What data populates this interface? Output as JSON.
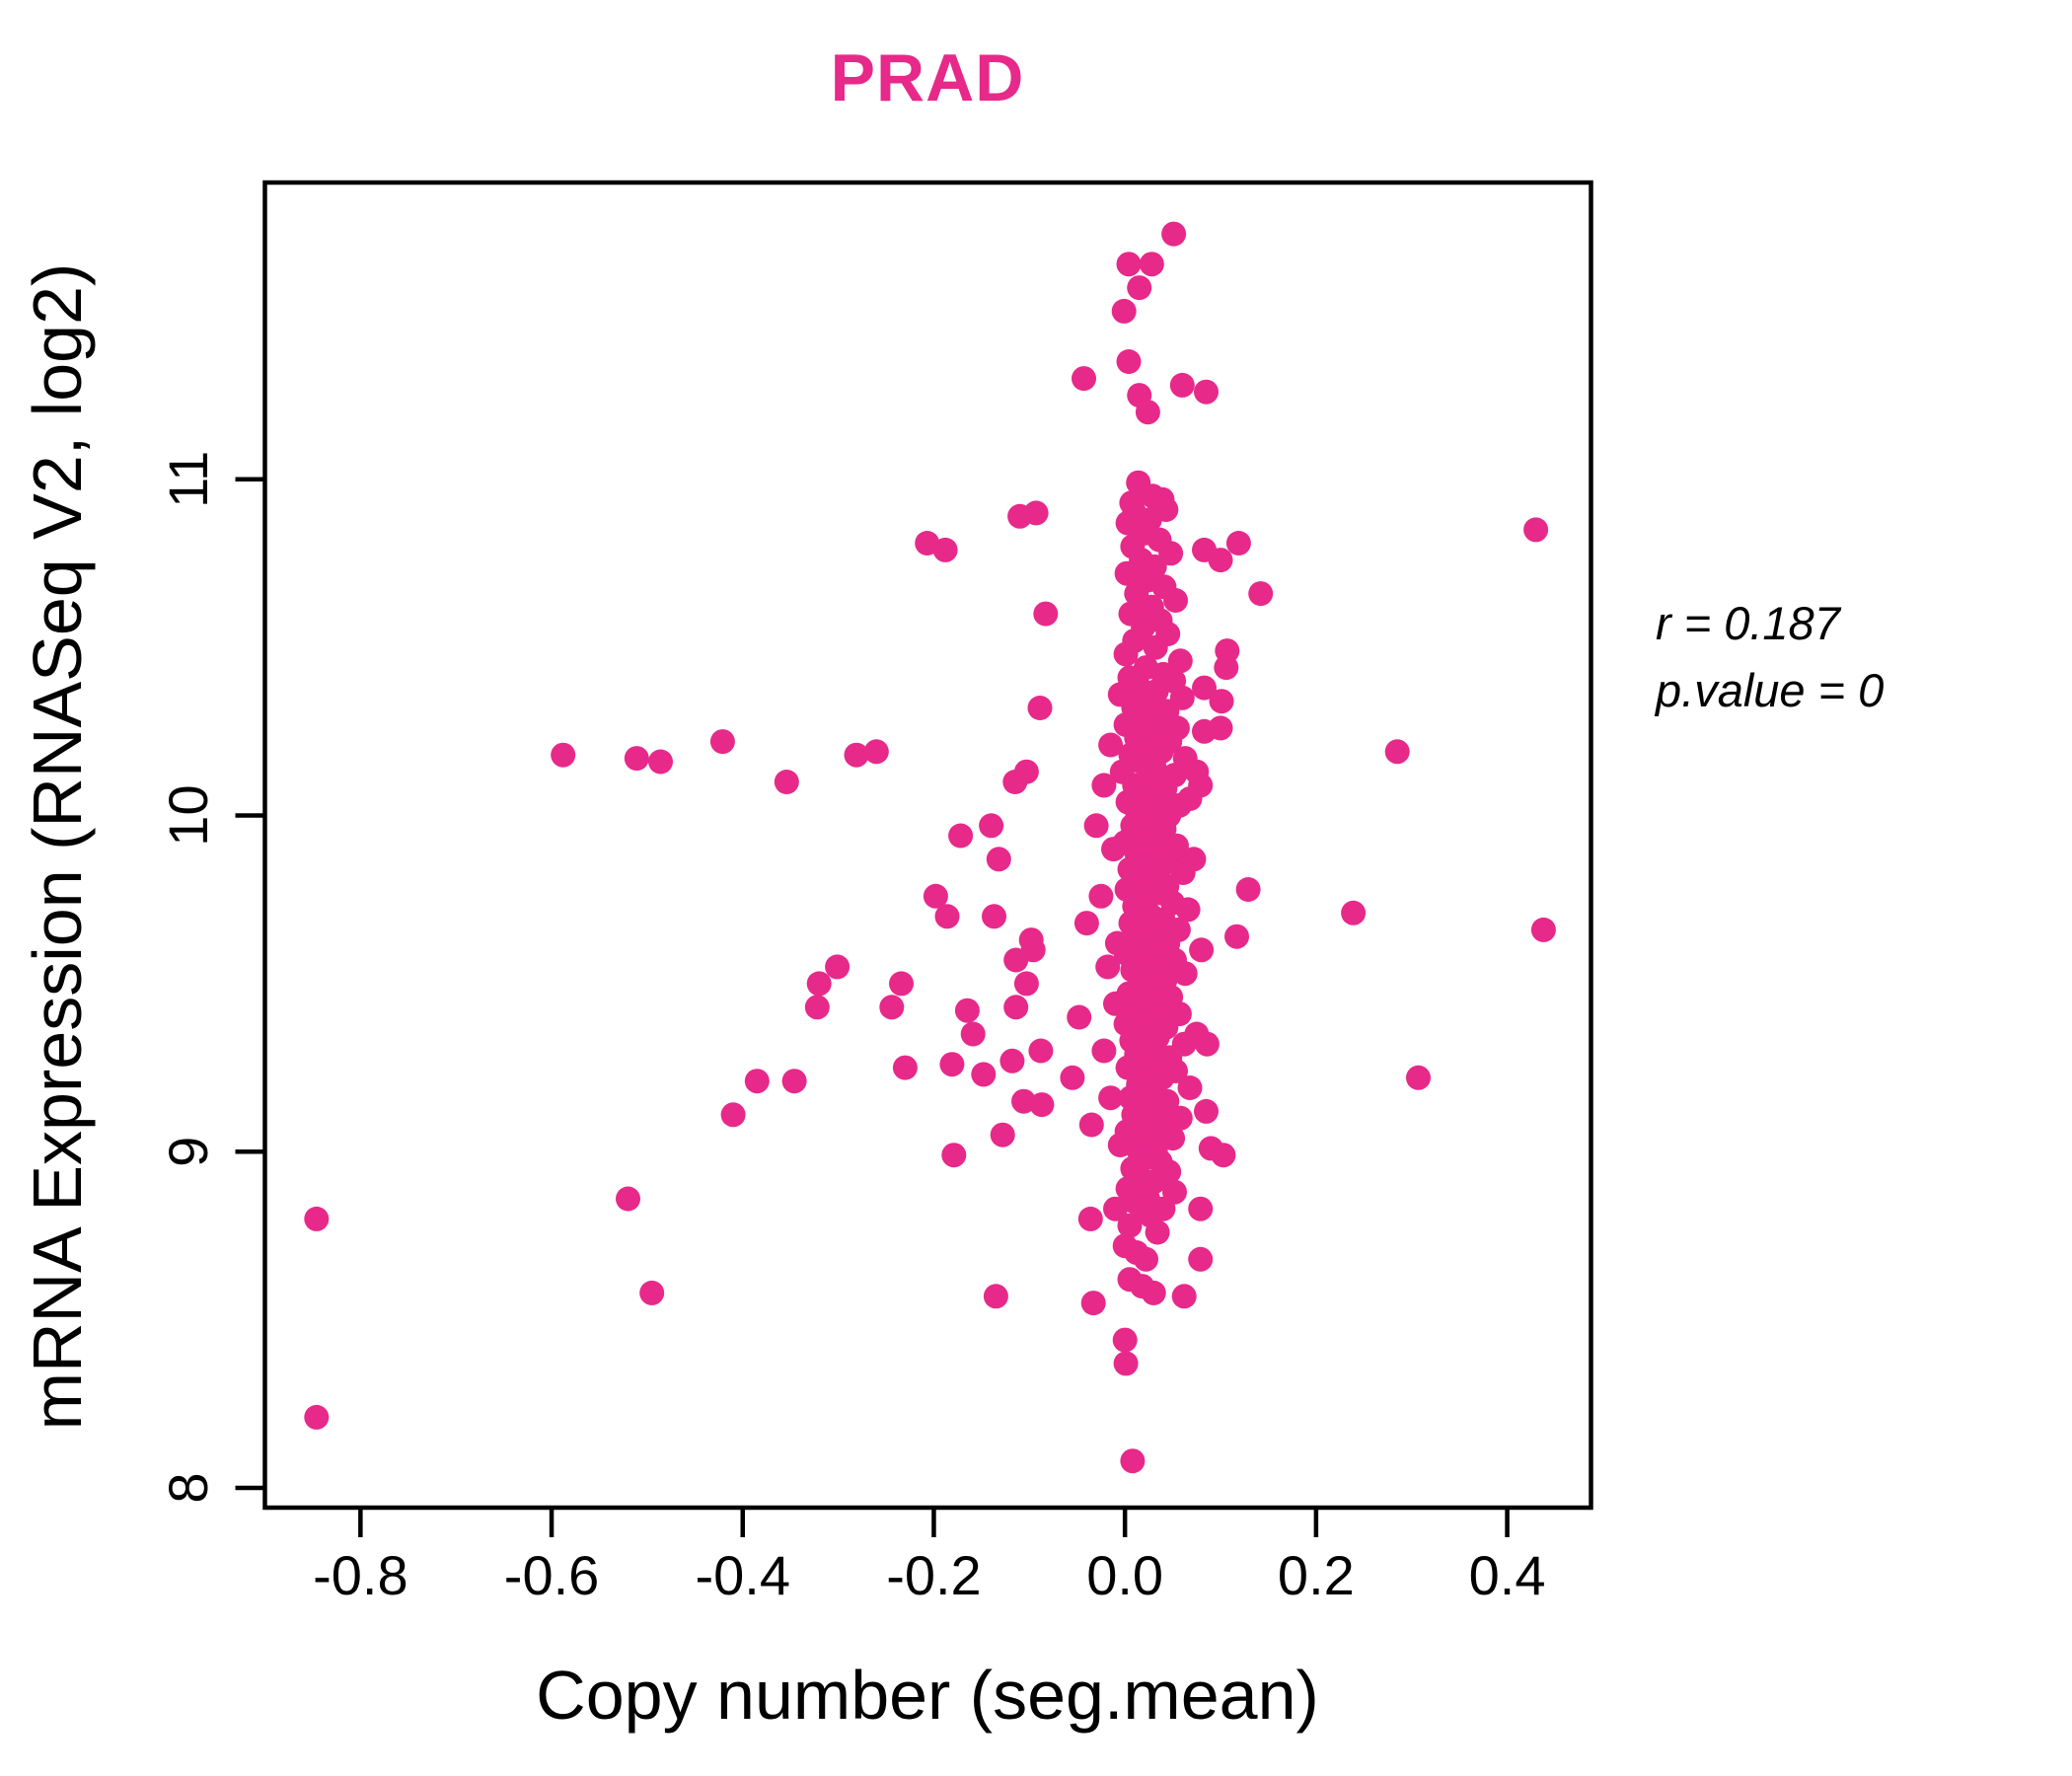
{
  "chart": {
    "title": "PRAD",
    "xlabel": "Copy number (seg.mean)",
    "ylabel": "mRNA Expression (RNASeq V2, log2)",
    "annotation": {
      "line1": "r = 0.187",
      "line2": "p.value = 0"
    },
    "colors": {
      "point": "#E7298A",
      "title": "#E7298A",
      "axis": "#000000"
    }
  },
  "chart_data": {
    "type": "scatter",
    "title": "PRAD",
    "xlabel": "Copy number (seg.mean)",
    "ylabel": "mRNA Expression (RNASeq V2, log2)",
    "correlation_r": 0.187,
    "p_value": 0,
    "grid": false,
    "legend": null,
    "point_color": "#E7298A",
    "xlim": [
      -0.9,
      0.4877
    ],
    "ylim": [
      7.9413,
      11.8828
    ],
    "x_ticks": [
      {
        "value": -0.8,
        "label": "-0.8"
      },
      {
        "value": -0.6,
        "label": "-0.6"
      },
      {
        "value": -0.4,
        "label": "-0.4"
      },
      {
        "value": -0.2,
        "label": "-0.2"
      },
      {
        "value": 0.0,
        "label": "0.0"
      },
      {
        "value": 0.2,
        "label": "0.2"
      },
      {
        "value": 0.4,
        "label": "0.4"
      }
    ],
    "y_ticks": [
      {
        "value": 8,
        "label": "8"
      },
      {
        "value": 9,
        "label": "9"
      },
      {
        "value": 10,
        "label": "10"
      },
      {
        "value": 11,
        "label": "11"
      }
    ],
    "points": [
      [
        0.051,
        11.73
      ],
      [
        0.004,
        11.64
      ],
      [
        0.028,
        11.64
      ],
      [
        0.015,
        11.57
      ],
      [
        -0.001,
        11.5
      ],
      [
        0.004,
        11.35
      ],
      [
        -0.043,
        11.3
      ],
      [
        0.015,
        11.25
      ],
      [
        0.024,
        11.2
      ],
      [
        0.06,
        11.28
      ],
      [
        0.085,
        11.26
      ],
      [
        -0.093,
        10.9
      ],
      [
        -0.11,
        10.89
      ],
      [
        0.014,
        10.99
      ],
      [
        0.029,
        10.95
      ],
      [
        0.007,
        10.93
      ],
      [
        0.039,
        10.94
      ],
      [
        0.01,
        10.9
      ],
      [
        0.026,
        10.88
      ],
      [
        0.043,
        10.91
      ],
      [
        0.003,
        10.87
      ],
      [
        0.021,
        10.84
      ],
      [
        0.036,
        10.82
      ],
      [
        0.008,
        10.8
      ],
      [
        0.048,
        10.78
      ],
      [
        0.017,
        10.76
      ],
      [
        0.031,
        10.74
      ],
      [
        0.002,
        10.72
      ],
      [
        0.024,
        10.7
      ],
      [
        0.041,
        10.68
      ],
      [
        0.012,
        10.66
      ],
      [
        0.053,
        10.64
      ],
      [
        0.028,
        10.62
      ],
      [
        0.006,
        10.6
      ],
      [
        0.037,
        10.58
      ],
      [
        0.019,
        10.56
      ],
      [
        0.045,
        10.54
      ],
      [
        0.01,
        10.52
      ],
      [
        0.032,
        10.5
      ],
      [
        0.001,
        10.48
      ],
      [
        0.058,
        10.46
      ],
      [
        0.022,
        10.44
      ],
      [
        0.04,
        10.42
      ],
      [
        0.005,
        10.41
      ],
      [
        0.051,
        10.4
      ],
      [
        0.015,
        10.38
      ],
      [
        0.033,
        10.37
      ],
      [
        -0.005,
        10.36
      ],
      [
        0.06,
        10.35
      ],
      [
        0.026,
        10.33
      ],
      [
        0.009,
        10.32
      ],
      [
        0.044,
        10.31
      ],
      [
        0.019,
        10.29
      ],
      [
        0.036,
        10.28
      ],
      [
        0.001,
        10.27
      ],
      [
        0.055,
        10.26
      ],
      [
        0.028,
        10.24
      ],
      [
        0.012,
        10.23
      ],
      [
        0.047,
        10.22
      ],
      [
        0.023,
        10.2
      ],
      [
        0.038,
        10.19
      ],
      [
        0.006,
        10.18
      ],
      [
        0.063,
        10.17
      ],
      [
        0.017,
        10.16
      ],
      [
        0.031,
        10.14
      ],
      [
        -0.003,
        10.13
      ],
      [
        0.052,
        10.12
      ],
      [
        0.025,
        10.11
      ],
      [
        0.01,
        10.09
      ],
      [
        0.042,
        10.08
      ],
      [
        0.02,
        10.07
      ],
      [
        0.035,
        10.05
      ],
      [
        0.003,
        10.04
      ],
      [
        0.057,
        10.03
      ],
      [
        0.027,
        10.02
      ],
      [
        0.013,
        10.01
      ],
      [
        0.046,
        10.0
      ],
      [
        0.068,
        10.05
      ],
      [
        -0.015,
        10.21
      ],
      [
        -0.022,
        10.09
      ],
      [
        0.075,
        10.13
      ],
      [
        0.024,
        9.98
      ],
      [
        0.008,
        9.97
      ],
      [
        0.041,
        9.96
      ],
      [
        0.017,
        9.95
      ],
      [
        0.033,
        9.93
      ],
      [
        0.0,
        9.92
      ],
      [
        0.054,
        9.91
      ],
      [
        0.026,
        9.9
      ],
      [
        0.012,
        9.89
      ],
      [
        0.047,
        9.88
      ],
      [
        0.021,
        9.86
      ],
      [
        0.038,
        9.85
      ],
      [
        0.005,
        9.84
      ],
      [
        0.061,
        9.83
      ],
      [
        0.029,
        9.81
      ],
      [
        0.015,
        9.8
      ],
      [
        0.044,
        9.79
      ],
      [
        0.002,
        9.78
      ],
      [
        0.035,
        9.77
      ],
      [
        0.023,
        9.75
      ],
      [
        0.05,
        9.74
      ],
      [
        0.01,
        9.73
      ],
      [
        0.066,
        9.72
      ],
      [
        0.028,
        9.7
      ],
      [
        0.04,
        9.69
      ],
      [
        0.006,
        9.68
      ],
      [
        0.018,
        9.67
      ],
      [
        0.056,
        9.66
      ],
      [
        0.031,
        9.64
      ],
      [
        0.013,
        9.63
      ],
      [
        0.045,
        9.62
      ],
      [
        0.024,
        9.6
      ],
      [
        0.001,
        9.59
      ],
      [
        0.037,
        9.58
      ],
      [
        0.052,
        9.57
      ],
      [
        0.019,
        9.55
      ],
      [
        0.008,
        9.54
      ],
      [
        0.063,
        9.53
      ],
      [
        0.027,
        9.52
      ],
      [
        0.042,
        9.51
      ],
      [
        -0.012,
        9.9
      ],
      [
        -0.025,
        9.76
      ],
      [
        -0.008,
        9.62
      ],
      [
        -0.018,
        9.55
      ],
      [
        0.072,
        9.87
      ],
      [
        0.08,
        9.6
      ],
      [
        -0.03,
        9.97
      ],
      [
        -0.04,
        9.68
      ],
      [
        0.016,
        9.49
      ],
      [
        0.033,
        9.48
      ],
      [
        0.004,
        9.47
      ],
      [
        0.048,
        9.46
      ],
      [
        0.022,
        9.44
      ],
      [
        0.038,
        9.43
      ],
      [
        0.01,
        9.42
      ],
      [
        0.057,
        9.41
      ],
      [
        0.027,
        9.39
      ],
      [
        0.001,
        9.38
      ],
      [
        0.043,
        9.37
      ],
      [
        0.018,
        9.36
      ],
      [
        0.034,
        9.34
      ],
      [
        0.007,
        9.33
      ],
      [
        0.062,
        9.32
      ],
      [
        0.025,
        9.31
      ],
      [
        0.012,
        9.29
      ],
      [
        0.047,
        9.28
      ],
      [
        0.03,
        9.27
      ],
      [
        0.003,
        9.25
      ],
      [
        0.053,
        9.24
      ],
      [
        0.02,
        9.23
      ],
      [
        0.039,
        9.22
      ],
      [
        0.014,
        9.2
      ],
      [
        0.068,
        9.19
      ],
      [
        0.028,
        9.18
      ],
      [
        0.006,
        9.16
      ],
      [
        0.044,
        9.15
      ],
      [
        0.023,
        9.14
      ],
      [
        0.035,
        9.12
      ],
      [
        0.009,
        9.11
      ],
      [
        0.058,
        9.1
      ],
      [
        0.017,
        9.08
      ],
      [
        0.041,
        9.07
      ],
      [
        0.002,
        9.06
      ],
      [
        0.05,
        9.04
      ],
      [
        0.026,
        9.03
      ],
      [
        0.013,
        9.01
      ],
      [
        0.032,
        9.0
      ],
      [
        -0.01,
        9.44
      ],
      [
        -0.022,
        9.3
      ],
      [
        -0.015,
        9.16
      ],
      [
        -0.035,
        9.08
      ],
      [
        -0.005,
        9.02
      ],
      [
        0.075,
        9.35
      ],
      [
        0.085,
        9.12
      ],
      [
        -0.048,
        9.4
      ],
      [
        -0.055,
        9.22
      ],
      [
        0.021,
        8.98
      ],
      [
        0.037,
        8.97
      ],
      [
        0.008,
        8.95
      ],
      [
        0.046,
        8.94
      ],
      [
        0.016,
        8.92
      ],
      [
        0.03,
        8.91
      ],
      [
        0.003,
        8.89
      ],
      [
        0.052,
        8.88
      ],
      [
        0.024,
        8.86
      ],
      [
        0.011,
        8.85
      ],
      [
        0.04,
        8.83
      ],
      [
        0.027,
        8.81
      ],
      [
        -0.01,
        8.83
      ],
      [
        -0.036,
        8.8
      ],
      [
        0.021,
        8.82
      ],
      [
        0.079,
        8.83
      ],
      [
        0.005,
        8.78
      ],
      [
        0.034,
        8.76
      ],
      [
        0.119,
        10.81
      ],
      [
        0.1,
        10.76
      ],
      [
        0.083,
        10.79
      ],
      [
        0.142,
        10.66
      ],
      [
        0.107,
        10.49
      ],
      [
        0.106,
        10.44
      ],
      [
        0.083,
        10.38
      ],
      [
        0.101,
        10.34
      ],
      [
        0.1,
        10.26
      ],
      [
        0.083,
        10.25
      ],
      [
        0.079,
        10.09
      ],
      [
        0.117,
        9.64
      ],
      [
        0.129,
        9.78
      ],
      [
        0.086,
        9.32
      ],
      [
        0.09,
        9.01
      ],
      [
        0.103,
        8.99
      ],
      [
        0.285,
        10.19
      ],
      [
        0.239,
        9.71
      ],
      [
        0.438,
        9.66
      ],
      [
        0.43,
        10.85
      ],
      [
        0.307,
        9.22
      ],
      [
        -0.207,
        10.81
      ],
      [
        -0.188,
        10.79
      ],
      [
        -0.281,
        10.18
      ],
      [
        -0.26,
        10.19
      ],
      [
        -0.354,
        10.1
      ],
      [
        -0.172,
        9.94
      ],
      [
        -0.14,
        9.97
      ],
      [
        -0.198,
        9.76
      ],
      [
        -0.186,
        9.7
      ],
      [
        -0.137,
        9.7
      ],
      [
        -0.132,
        9.87
      ],
      [
        -0.083,
        10.6
      ],
      [
        -0.089,
        10.32
      ],
      [
        -0.115,
        10.1
      ],
      [
        -0.103,
        10.13
      ],
      [
        -0.098,
        9.63
      ],
      [
        -0.096,
        9.6
      ],
      [
        -0.114,
        9.57
      ],
      [
        -0.103,
        9.5
      ],
      [
        -0.32,
        9.5
      ],
      [
        -0.301,
        9.55
      ],
      [
        -0.234,
        9.5
      ],
      [
        -0.322,
        9.43
      ],
      [
        -0.244,
        9.43
      ],
      [
        -0.165,
        9.42
      ],
      [
        -0.114,
        9.43
      ],
      [
        -0.159,
        9.35
      ],
      [
        -0.23,
        9.25
      ],
      [
        -0.181,
        9.26
      ],
      [
        -0.148,
        9.23
      ],
      [
        -0.118,
        9.27
      ],
      [
        -0.088,
        9.3
      ],
      [
        -0.385,
        9.21
      ],
      [
        -0.346,
        9.21
      ],
      [
        -0.41,
        9.11
      ],
      [
        -0.106,
        9.15
      ],
      [
        -0.087,
        9.14
      ],
      [
        -0.128,
        9.05
      ],
      [
        -0.179,
        8.99
      ],
      [
        -0.135,
        8.57
      ],
      [
        -0.033,
        8.55
      ],
      [
        -0.846,
        8.8
      ],
      [
        -0.846,
        8.21
      ],
      [
        -0.52,
        8.86
      ],
      [
        -0.495,
        8.58
      ],
      [
        -0.421,
        10.22
      ],
      [
        -0.588,
        10.18
      ],
      [
        -0.511,
        10.17
      ],
      [
        -0.486,
        10.16
      ],
      [
        0.0,
        8.72
      ],
      [
        0.012,
        8.7
      ],
      [
        0.022,
        8.68
      ],
      [
        0.005,
        8.62
      ],
      [
        0.018,
        8.6
      ],
      [
        0.03,
        8.58
      ],
      [
        0.079,
        8.68
      ],
      [
        0.062,
        8.57
      ],
      [
        0.0,
        8.44
      ],
      [
        0.001,
        8.37
      ],
      [
        0.008,
        8.08
      ]
    ]
  }
}
